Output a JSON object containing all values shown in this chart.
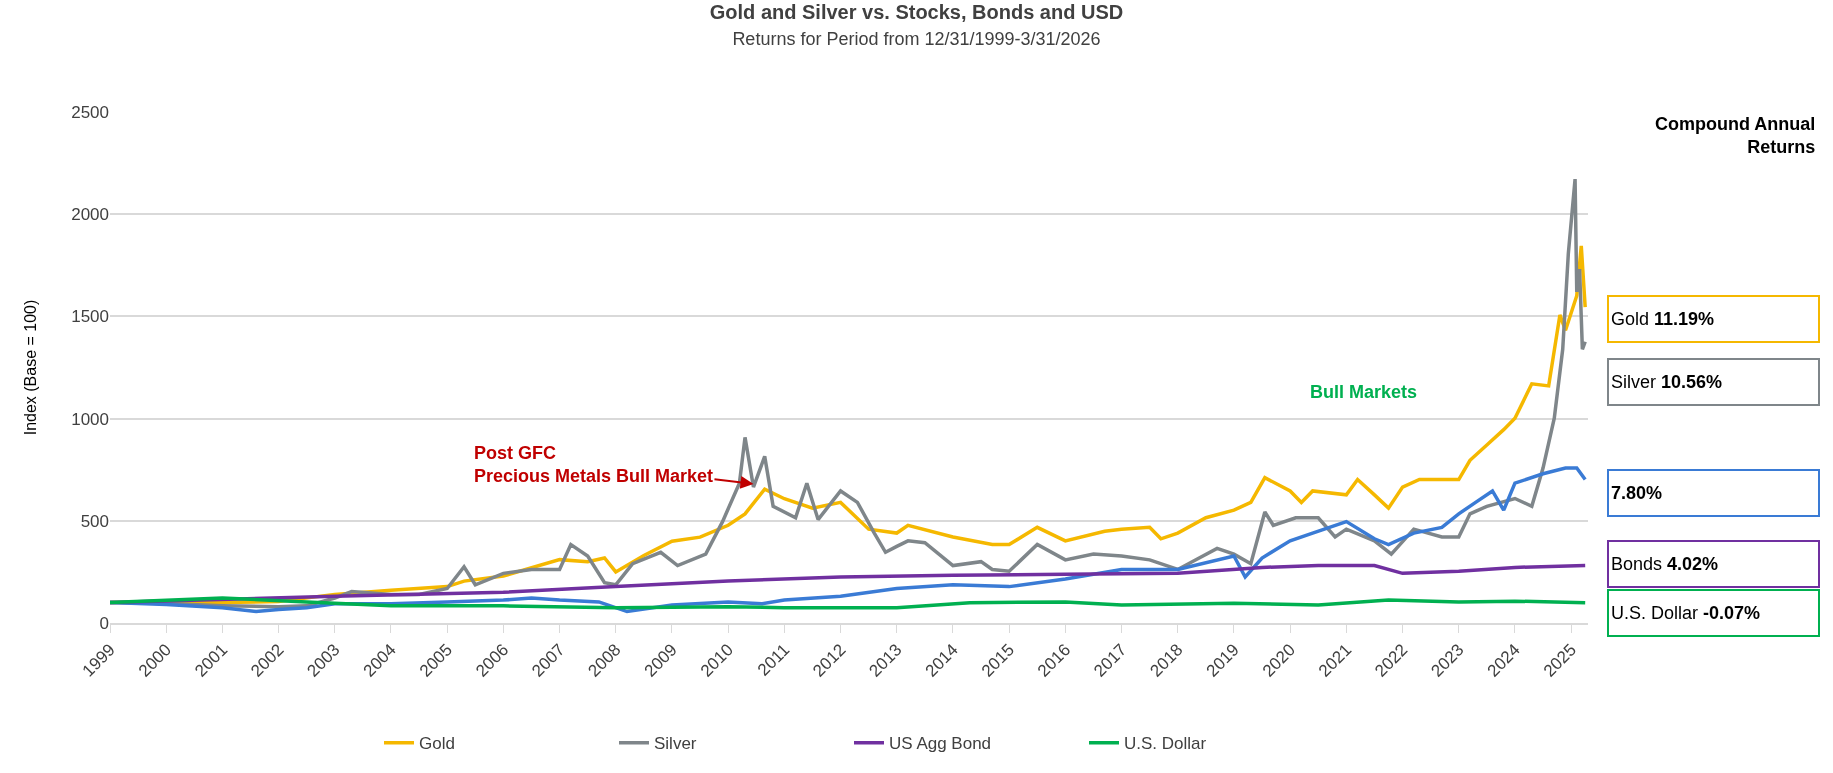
{
  "chart_data": {
    "type": "line",
    "title": "Gold and Silver vs. Stocks, Bonds and USD",
    "subtitle": "Returns for Period from 12/31/1999-3/31/2026",
    "ylabel": "Index (Base = 100)",
    "xlim": [
      1999,
      2025.3
    ],
    "xticks": [
      1999,
      2000,
      2001,
      2002,
      2003,
      2004,
      2005,
      2006,
      2007,
      2008,
      2009,
      2010,
      2011,
      2012,
      2013,
      2014,
      2015,
      2016,
      2017,
      2018,
      2019,
      2020,
      2021,
      2022,
      2023,
      2024,
      2025
    ],
    "ylim": [
      0,
      2500
    ],
    "yticks": [
      0,
      500,
      1000,
      1500,
      2000,
      2500
    ],
    "grid": "y",
    "legend": "bottom",
    "line_style": "solid",
    "marker": "none",
    "series": [
      {
        "name": "Gold",
        "color": "#f5b800",
        "x": [
          1999,
          2000,
          2001,
          2002,
          2003,
          2004,
          2005,
          2005.3,
          2006,
          2007,
          2007.5,
          2007.8,
          2008,
          2008.5,
          2009,
          2009.5,
          2010,
          2010.3,
          2010.65,
          2011,
          2011.5,
          2012,
          2012.5,
          2013,
          2013.2,
          2014,
          2014.7,
          2015,
          2015.5,
          2016,
          2016.7,
          2017,
          2017.5,
          2017.7,
          2018,
          2018.5,
          2019,
          2019.3,
          2019.55,
          2020,
          2020.2,
          2020.4,
          2021,
          2021.2,
          2021.5,
          2021.75,
          2022,
          2022.3,
          2023,
          2023.2,
          2023.5,
          2023.8,
          2024,
          2024.3,
          2024.6,
          2024.8,
          2024.9,
          2025.1,
          2025.18,
          2025.25
        ],
        "values": [
          100,
          100,
          100,
          105,
          140,
          160,
          178,
          205,
          230,
          310,
          300,
          318,
          250,
          330,
          400,
          420,
          478,
          534,
          655,
          608,
          562,
          590,
          459,
          440,
          478,
          421,
          384,
          384,
          468,
          402,
          449,
          459,
          468,
          412,
          440,
          515,
          552,
          590,
          711,
          646,
          590,
          646,
          627,
          702,
          627,
          562,
          665,
          702,
          702,
          796,
          871,
          946,
          1002,
          1170,
          1160,
          1507,
          1432,
          1601,
          1845,
          1545
        ]
      },
      {
        "name": "Silver",
        "color": "#7f868a",
        "x": [
          1999,
          2000,
          2001,
          2002,
          2002.5,
          2003,
          2003.3,
          2004,
          2004.5,
          2005,
          2005.3,
          2005.5,
          2006,
          2006.5,
          2007,
          2007.2,
          2007.5,
          2007.8,
          2008,
          2008.3,
          2008.8,
          2009.1,
          2009.6,
          2009.9,
          2010.2,
          2010.3,
          2010.45,
          2010.65,
          2010.8,
          2011.2,
          2011.4,
          2011.6,
          2012,
          2012.3,
          2012.6,
          2012.8,
          2013,
          2013.2,
          2013.5,
          2014,
          2014.5,
          2014.7,
          2015,
          2015.5,
          2016,
          2016.5,
          2017,
          2017.5,
          2018,
          2018.7,
          2019,
          2019.3,
          2019.55,
          2019.7,
          2020.1,
          2020.5,
          2020.8,
          2021,
          2021.5,
          2021.8,
          2022.2,
          2022.7,
          2023,
          2023.2,
          2023.5,
          2024,
          2024.3,
          2024.5,
          2024.7,
          2024.85,
          2024.95,
          2025.07,
          2025.1,
          2025.15,
          2025.2,
          2025.25
        ],
        "values": [
          100,
          95,
          85,
          80,
          84,
          122,
          154,
          140,
          140,
          169,
          275,
          187,
          243,
          262,
          262,
          384,
          328,
          197,
          187,
          290,
          346,
          281,
          337,
          496,
          684,
          908,
          665,
          815,
          571,
          515,
          684,
          506,
          646,
          590,
          440,
          346,
          375,
          402,
          393,
          281,
          300,
          262,
          253,
          384,
          309,
          337,
          328,
          309,
          262,
          365,
          337,
          290,
          543,
          478,
          515,
          515,
          421,
          459,
          402,
          337,
          459,
          421,
          421,
          534,
          571,
          609,
          571,
          758,
          1002,
          1339,
          1807,
          2172,
          1620,
          1732,
          1339,
          1376
        ]
      },
      {
        "color": "#3a7bd5",
        "x": [
          1999,
          2000,
          2001,
          2001.6,
          2002,
          2002.5,
          2003,
          2004,
          2005,
          2006,
          2006.5,
          2007,
          2007.7,
          2008.2,
          2009,
          2010,
          2010.6,
          2011,
          2012,
          2013,
          2014,
          2015,
          2016,
          2017,
          2018,
          2019,
          2019.2,
          2019.5,
          2020,
          2020.4,
          2021,
          2021.5,
          2021.75,
          2022.2,
          2022.7,
          2023,
          2023.3,
          2023.6,
          2023.8,
          2024,
          2024.5,
          2024.9,
          2025.1,
          2025.25
        ],
        "values": [
          100,
          90,
          75,
          56,
          66,
          75,
          94,
          94,
          103,
          112,
          122,
          112,
          103,
          56,
          88,
          103,
          94,
          112,
          131,
          169,
          187,
          178,
          215,
          262,
          262,
          328,
          225,
          318,
          402,
          440,
          496,
          412,
          384,
          440,
          468,
          534,
          590,
          646,
          552,
          684,
          730,
          758,
          758,
          702
        ]
      },
      {
        "name": "US Agg Bond",
        "color": "#7030a0",
        "x": [
          1999,
          2003,
          2006,
          2008,
          2010,
          2012,
          2014,
          2016,
          2018,
          2019.5,
          2020.5,
          2021.5,
          2022,
          2023,
          2024,
          2025.25
        ],
        "values": [
          100,
          131,
          150,
          178,
          206,
          225,
          234,
          238,
          243,
          272,
          281,
          281,
          243,
          253,
          272,
          281
        ]
      },
      {
        "name": "U.S. Dollar",
        "color": "#00b050",
        "x": [
          1999,
          2001,
          2002.5,
          2004,
          2006,
          2008,
          2010,
          2011,
          2013,
          2014.3,
          2016,
          2017,
          2019,
          2020.5,
          2021.75,
          2023,
          2024,
          2025.25
        ],
        "values": [
          100,
          122,
          103,
          84,
          84,
          75,
          80,
          75,
          75,
          99,
          103,
          88,
          97,
          88,
          112,
          103,
          107,
          99
        ]
      }
    ],
    "annotations": [
      {
        "text": "Post GFC\nPrecious Metals Bull Market",
        "x": 2010.45,
        "y": 680
      },
      "Bull Markets",
      "Compound Annual\nReturns",
      "Gold 11.19%",
      "Silver 10.56%",
      "7.80%",
      "Bonds 4.02%",
      "U.S. Dollar -0.07%"
    ]
  }
}
